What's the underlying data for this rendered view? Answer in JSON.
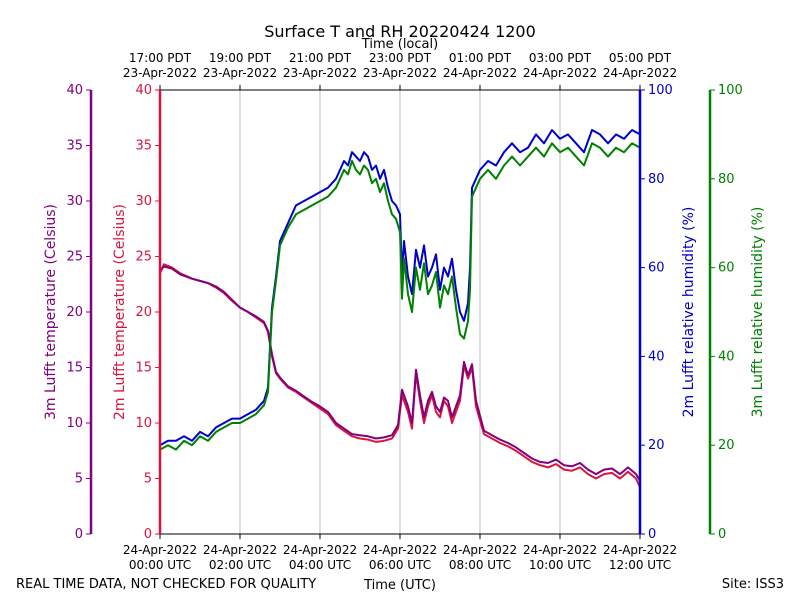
{
  "chart_data": {
    "type": "line",
    "title": "Surface T and RH 20220424 1200",
    "top_axis_label": "Time (local)",
    "xlabel": "Time (UTC)",
    "footer_left": "REAL TIME DATA, NOT CHECKED FOR QUALITY",
    "footer_right": "Site: ISS3",
    "x_range_hours_utc": [
      0,
      12
    ],
    "bottom_ticks": [
      {
        "hour": 0,
        "date": "24-Apr-2022",
        "time": "00:00 UTC"
      },
      {
        "hour": 2,
        "date": "24-Apr-2022",
        "time": "02:00 UTC"
      },
      {
        "hour": 4,
        "date": "24-Apr-2022",
        "time": "04:00 UTC"
      },
      {
        "hour": 6,
        "date": "24-Apr-2022",
        "time": "06:00 UTC"
      },
      {
        "hour": 8,
        "date": "24-Apr-2022",
        "time": "08:00 UTC"
      },
      {
        "hour": 10,
        "date": "24-Apr-2022",
        "time": "10:00 UTC"
      },
      {
        "hour": 12,
        "date": "24-Apr-2022",
        "time": "12:00 UTC"
      }
    ],
    "top_ticks": [
      {
        "hour": 0,
        "time": "17:00 PDT",
        "date": "23-Apr-2022"
      },
      {
        "hour": 2,
        "time": "19:00 PDT",
        "date": "23-Apr-2022"
      },
      {
        "hour": 4,
        "time": "21:00 PDT",
        "date": "23-Apr-2022"
      },
      {
        "hour": 6,
        "time": "23:00 PDT",
        "date": "23-Apr-2022"
      },
      {
        "hour": 8,
        "time": "01:00 PDT",
        "date": "24-Apr-2022"
      },
      {
        "hour": 10,
        "time": "03:00 PDT",
        "date": "24-Apr-2022"
      },
      {
        "hour": 12,
        "time": "05:00 PDT",
        "date": "24-Apr-2022"
      }
    ],
    "axes": {
      "temp_3m": {
        "label": "3m Lufft temperature (Celsius)",
        "range": [
          0,
          40
        ],
        "ticks": [
          "0",
          "5",
          "10",
          "15",
          "20",
          "25",
          "30",
          "35",
          "40"
        ],
        "color": "#800080"
      },
      "temp_2m": {
        "label": "2m Lufft temperature (Celsius)",
        "range": [
          0,
          40
        ],
        "ticks": [
          "0",
          "5",
          "10",
          "15",
          "20",
          "25",
          "30",
          "35",
          "40"
        ],
        "color": "#dc143c"
      },
      "rh_2m": {
        "label": "2m Lufft relative humidity (%)",
        "range": [
          0,
          100
        ],
        "ticks": [
          "0",
          "20",
          "40",
          "60",
          "80",
          "100"
        ],
        "color": "#0000cd"
      },
      "rh_3m": {
        "label": "3m Lufft relative humidity (%)",
        "range": [
          0,
          100
        ],
        "ticks": [
          "0",
          "20",
          "40",
          "60",
          "80",
          "100"
        ],
        "color": "#008000"
      }
    },
    "series": [
      {
        "name": "2m Lufft temperature (Celsius)",
        "axis": "temp_2m",
        "color": "#dc143c",
        "x": [
          0,
          0.1,
          0.3,
          0.5,
          0.8,
          1.0,
          1.2,
          1.4,
          1.6,
          1.8,
          2.0,
          2.2,
          2.4,
          2.6,
          2.7,
          2.8,
          2.9,
          3.0,
          3.2,
          3.4,
          3.6,
          3.8,
          4.0,
          4.2,
          4.4,
          4.6,
          4.8,
          5.0,
          5.2,
          5.4,
          5.6,
          5.8,
          5.95,
          6.05,
          6.2,
          6.3,
          6.4,
          6.5,
          6.6,
          6.7,
          6.8,
          6.9,
          7.0,
          7.1,
          7.2,
          7.3,
          7.4,
          7.5,
          7.6,
          7.7,
          7.8,
          7.9,
          8.1,
          8.3,
          8.5,
          8.7,
          8.9,
          9.1,
          9.3,
          9.5,
          9.7,
          9.9,
          10.1,
          10.3,
          10.5,
          10.7,
          10.9,
          11.1,
          11.3,
          11.5,
          11.7,
          11.9,
          12.0
        ],
        "values": [
          23.5,
          24.3,
          24.0,
          23.5,
          23.0,
          22.8,
          22.6,
          22.2,
          21.7,
          21.0,
          20.4,
          20.0,
          19.5,
          19.0,
          18.2,
          16.0,
          14.5,
          14.0,
          13.2,
          12.8,
          12.3,
          11.8,
          11.3,
          10.8,
          9.8,
          9.3,
          8.8,
          8.6,
          8.5,
          8.3,
          8.4,
          8.6,
          9.5,
          12.5,
          11.0,
          9.5,
          14.5,
          12.0,
          10.0,
          11.5,
          12.5,
          11.0,
          10.5,
          12.0,
          11.5,
          10.0,
          11.0,
          12.0,
          15.2,
          14.0,
          15.0,
          11.5,
          9.0,
          8.6,
          8.2,
          7.9,
          7.5,
          7.0,
          6.5,
          6.2,
          6.0,
          6.3,
          5.8,
          5.7,
          6.0,
          5.4,
          5.0,
          5.4,
          5.5,
          5.0,
          5.6,
          5.0,
          4.2
        ]
      },
      {
        "name": "3m Lufft temperature (Celsius)",
        "axis": "temp_3m",
        "color": "#800080",
        "x": [
          0,
          0.1,
          0.3,
          0.5,
          0.8,
          1.0,
          1.2,
          1.4,
          1.6,
          1.8,
          2.0,
          2.2,
          2.4,
          2.6,
          2.7,
          2.8,
          2.9,
          3.0,
          3.2,
          3.4,
          3.6,
          3.8,
          4.0,
          4.2,
          4.4,
          4.6,
          4.8,
          5.0,
          5.2,
          5.4,
          5.6,
          5.8,
          5.95,
          6.05,
          6.2,
          6.3,
          6.4,
          6.5,
          6.6,
          6.7,
          6.8,
          6.9,
          7.0,
          7.1,
          7.2,
          7.3,
          7.4,
          7.5,
          7.6,
          7.7,
          7.8,
          7.9,
          8.1,
          8.3,
          8.5,
          8.7,
          8.9,
          9.1,
          9.3,
          9.5,
          9.7,
          9.9,
          10.1,
          10.3,
          10.5,
          10.7,
          10.9,
          11.1,
          11.3,
          11.5,
          11.7,
          11.9,
          12.0
        ],
        "values": [
          23.7,
          24.1,
          23.9,
          23.4,
          23.0,
          22.8,
          22.6,
          22.3,
          21.8,
          21.1,
          20.4,
          20.0,
          19.6,
          19.1,
          18.3,
          16.2,
          14.6,
          14.1,
          13.3,
          12.9,
          12.4,
          11.9,
          11.5,
          11.0,
          10.0,
          9.5,
          9.0,
          8.9,
          8.8,
          8.6,
          8.7,
          8.9,
          9.8,
          13.0,
          11.5,
          10.0,
          14.8,
          12.5,
          10.5,
          12.0,
          12.8,
          11.5,
          11.0,
          12.3,
          12.0,
          10.5,
          11.5,
          12.5,
          15.5,
          14.3,
          15.3,
          12.0,
          9.3,
          8.9,
          8.5,
          8.2,
          7.8,
          7.3,
          6.8,
          6.5,
          6.4,
          6.7,
          6.2,
          6.1,
          6.4,
          5.8,
          5.4,
          5.8,
          5.9,
          5.4,
          6.0,
          5.4,
          4.8
        ]
      },
      {
        "name": "2m Lufft relative humidity (%)",
        "axis": "rh_2m",
        "color": "#0000cd",
        "x": [
          0,
          0.2,
          0.4,
          0.6,
          0.8,
          1.0,
          1.2,
          1.4,
          1.6,
          1.8,
          2.0,
          2.2,
          2.4,
          2.6,
          2.7,
          2.8,
          2.9,
          3.0,
          3.2,
          3.4,
          3.6,
          3.8,
          4.0,
          4.2,
          4.4,
          4.5,
          4.6,
          4.7,
          4.8,
          4.9,
          5.0,
          5.1,
          5.2,
          5.3,
          5.4,
          5.5,
          5.6,
          5.7,
          5.8,
          5.9,
          6.0,
          6.05,
          6.1,
          6.2,
          6.3,
          6.4,
          6.5,
          6.6,
          6.7,
          6.8,
          6.9,
          7.0,
          7.1,
          7.2,
          7.3,
          7.4,
          7.5,
          7.6,
          7.7,
          7.75,
          7.8,
          7.9,
          8.0,
          8.2,
          8.4,
          8.6,
          8.8,
          9.0,
          9.2,
          9.4,
          9.6,
          9.8,
          10.0,
          10.2,
          10.4,
          10.6,
          10.8,
          11.0,
          11.2,
          11.4,
          11.6,
          11.8,
          12.0
        ],
        "values": [
          20,
          21,
          21,
          22,
          21,
          23,
          22,
          24,
          25,
          26,
          26,
          27,
          28,
          30,
          33,
          51,
          58,
          66,
          70,
          74,
          75,
          76,
          77,
          78,
          80,
          82,
          84,
          83,
          86,
          85,
          84,
          86,
          85,
          82,
          83,
          80,
          82,
          78,
          75,
          74,
          72,
          58,
          66,
          58,
          54,
          64,
          60,
          65,
          58,
          60,
          63,
          55,
          60,
          58,
          62,
          55,
          50,
          48,
          52,
          60,
          78,
          80,
          82,
          84,
          83,
          86,
          88,
          86,
          87,
          90,
          88,
          91,
          89,
          90,
          88,
          86,
          91,
          90,
          88,
          90,
          89,
          91,
          90
        ]
      },
      {
        "name": "3m Lufft relative humidity (%)",
        "axis": "rh_3m",
        "color": "#008000",
        "x": [
          0,
          0.2,
          0.4,
          0.6,
          0.8,
          1.0,
          1.2,
          1.4,
          1.6,
          1.8,
          2.0,
          2.2,
          2.4,
          2.6,
          2.7,
          2.8,
          2.9,
          3.0,
          3.2,
          3.4,
          3.6,
          3.8,
          4.0,
          4.2,
          4.4,
          4.5,
          4.6,
          4.7,
          4.8,
          4.9,
          5.0,
          5.1,
          5.2,
          5.3,
          5.4,
          5.5,
          5.6,
          5.7,
          5.8,
          5.9,
          6.0,
          6.05,
          6.1,
          6.2,
          6.3,
          6.4,
          6.5,
          6.6,
          6.7,
          6.8,
          6.9,
          7.0,
          7.1,
          7.2,
          7.3,
          7.4,
          7.5,
          7.6,
          7.7,
          7.75,
          7.8,
          7.9,
          8.0,
          8.2,
          8.4,
          8.6,
          8.8,
          9.0,
          9.2,
          9.4,
          9.6,
          9.8,
          10.0,
          10.2,
          10.4,
          10.6,
          10.8,
          11.0,
          11.2,
          11.4,
          11.6,
          11.8,
          12.0
        ],
        "values": [
          19,
          20,
          19,
          21,
          20,
          22,
          21,
          23,
          24,
          25,
          25,
          26,
          27,
          29,
          32,
          50,
          57,
          65,
          69,
          72,
          73,
          74,
          75,
          76,
          78,
          80,
          82,
          81,
          84,
          82,
          81,
          83,
          82,
          79,
          80,
          77,
          79,
          75,
          72,
          71,
          68,
          53,
          62,
          54,
          50,
          60,
          55,
          61,
          54,
          56,
          59,
          51,
          56,
          54,
          58,
          51,
          45,
          44,
          48,
          55,
          76,
          78,
          80,
          82,
          80,
          83,
          85,
          83,
          85,
          87,
          85,
          88,
          86,
          87,
          85,
          83,
          88,
          87,
          85,
          87,
          86,
          88,
          87
        ]
      }
    ]
  }
}
